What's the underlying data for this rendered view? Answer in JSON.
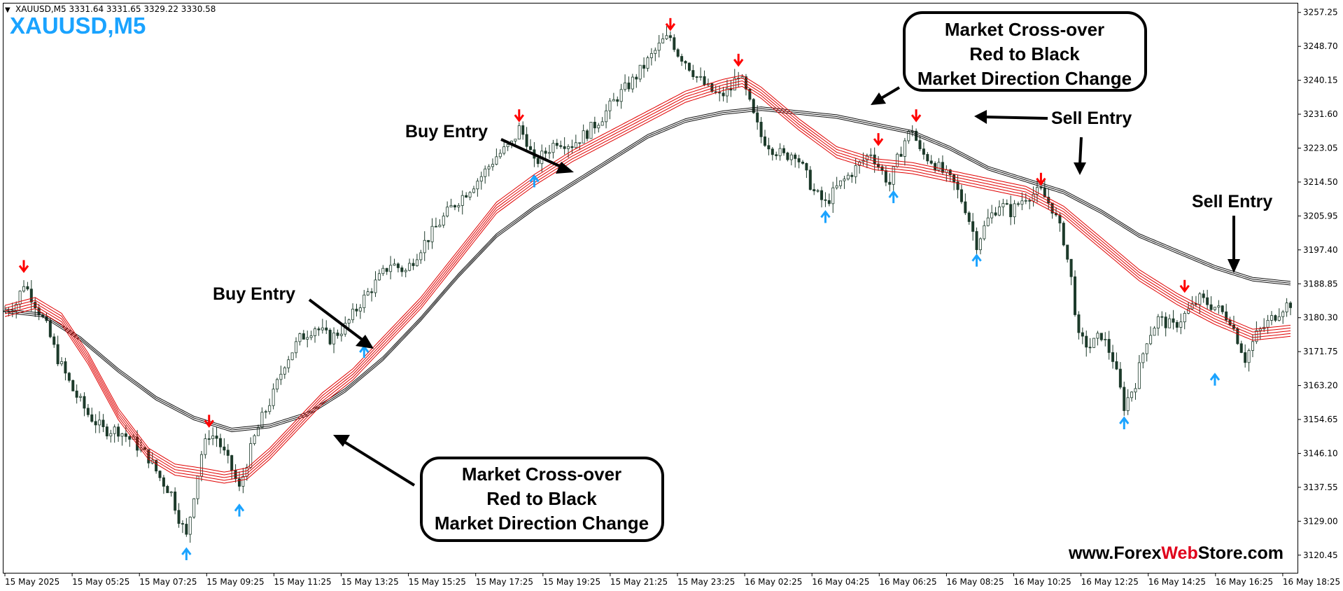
{
  "header": {
    "triangle_glyph": "▼",
    "info_line": "XAUUSD,M5  3331.64 3331.65 3329.22 3330.58",
    "big_title": "XAUUSD,M5"
  },
  "watermark": {
    "prefix": "www.Forex",
    "highlight": "Web",
    "suffix": "Store.com",
    "highlight_color": "#e0001b"
  },
  "colors": {
    "accent_blue": "#1aa3ff",
    "bull_candle": "#1c3a2a",
    "bear_candle": "#1c3a2a",
    "fast_ema": "#e00000",
    "slow_ema": "#111111",
    "sell_arrow": "#ff0000",
    "buy_arrow": "#1aa3ff"
  },
  "annotations": {
    "buy_entry_1": "Buy Entry",
    "buy_entry_2": "Buy Entry",
    "sell_entry_1": "Sell Entry",
    "sell_entry_2": "Sell Entry",
    "crossover_top": [
      "Market Cross-over",
      "Red to Black",
      "Market Direction Change"
    ],
    "crossover_bottom": [
      "Market Cross-over",
      "Red to Black",
      "Market Direction Change"
    ]
  },
  "chart_data": {
    "type": "candlestick",
    "symbol": "XAUUSD",
    "timeframe": "M5",
    "ylim": [
      3116.0,
      3259.5
    ],
    "y_ticks": [
      3257.25,
      3248.7,
      3240.15,
      3231.6,
      3223.05,
      3214.5,
      3205.95,
      3197.4,
      3188.85,
      3180.3,
      3171.75,
      3163.2,
      3154.65,
      3146.1,
      3137.55,
      3129.0,
      3120.45
    ],
    "x_tick_labels": [
      "15 May 2025",
      "15 May 05:25",
      "15 May 07:25",
      "15 May 09:25",
      "15 May 11:25",
      "15 May 13:25",
      "15 May 15:25",
      "15 May 17:25",
      "15 May 19:25",
      "15 May 21:25",
      "15 May 23:25",
      "16 May 02:25",
      "16 May 04:25",
      "16 May 06:25",
      "16 May 08:25",
      "16 May 10:25",
      "16 May 12:25",
      "16 May 14:25",
      "16 May 16:25",
      "16 May 18:25"
    ],
    "price_path_anchors": [
      [
        0,
        3182
      ],
      [
        3,
        3184
      ],
      [
        5,
        3189
      ],
      [
        8,
        3184
      ],
      [
        11,
        3178
      ],
      [
        14,
        3170
      ],
      [
        18,
        3162
      ],
      [
        22,
        3156
      ],
      [
        26,
        3152
      ],
      [
        30,
        3152
      ],
      [
        34,
        3149
      ],
      [
        38,
        3145
      ],
      [
        41,
        3140
      ],
      [
        44,
        3136
      ],
      [
        46,
        3130
      ],
      [
        48,
        3125
      ],
      [
        50,
        3136
      ],
      [
        52,
        3146
      ],
      [
        54,
        3151
      ],
      [
        56,
        3150
      ],
      [
        58,
        3146
      ],
      [
        60,
        3142
      ],
      [
        62,
        3137
      ],
      [
        64,
        3144
      ],
      [
        66,
        3150
      ],
      [
        68,
        3155
      ],
      [
        71,
        3161
      ],
      [
        74,
        3169
      ],
      [
        78,
        3175
      ],
      [
        82,
        3178
      ],
      [
        86,
        3175
      ],
      [
        90,
        3178
      ],
      [
        94,
        3184
      ],
      [
        98,
        3189
      ],
      [
        102,
        3194
      ],
      [
        106,
        3192
      ],
      [
        110,
        3198
      ],
      [
        114,
        3203
      ],
      [
        118,
        3208
      ],
      [
        122,
        3212
      ],
      [
        126,
        3216
      ],
      [
        130,
        3221
      ],
      [
        134,
        3224
      ],
      [
        136,
        3228
      ],
      [
        138,
        3225
      ],
      [
        140,
        3219
      ],
      [
        143,
        3222
      ],
      [
        146,
        3225
      ],
      [
        150,
        3224
      ],
      [
        154,
        3227
      ],
      [
        158,
        3231
      ],
      [
        162,
        3236
      ],
      [
        166,
        3240
      ],
      [
        170,
        3245
      ],
      [
        174,
        3250
      ],
      [
        176,
        3251
      ],
      [
        178,
        3247
      ],
      [
        180,
        3245
      ],
      [
        183,
        3241
      ],
      [
        186,
        3238
      ],
      [
        189,
        3236
      ],
      [
        192,
        3238
      ],
      [
        194,
        3242
      ],
      [
        196,
        3237
      ],
      [
        198,
        3231
      ],
      [
        200,
        3226
      ],
      [
        203,
        3223
      ],
      [
        206,
        3221
      ],
      [
        209,
        3222
      ],
      [
        212,
        3216
      ],
      [
        214,
        3212
      ],
      [
        217,
        3209
      ],
      [
        220,
        3213
      ],
      [
        223,
        3216
      ],
      [
        226,
        3219
      ],
      [
        229,
        3222
      ],
      [
        232,
        3217
      ],
      [
        234,
        3214
      ],
      [
        236,
        3220
      ],
      [
        238,
        3225
      ],
      [
        240,
        3228
      ],
      [
        242,
        3222
      ],
      [
        245,
        3220
      ],
      [
        248,
        3217
      ],
      [
        251,
        3214
      ],
      [
        254,
        3208
      ],
      [
        257,
        3199
      ],
      [
        260,
        3205
      ],
      [
        263,
        3209
      ],
      [
        266,
        3207
      ],
      [
        270,
        3211
      ],
      [
        274,
        3212
      ],
      [
        277,
        3208
      ],
      [
        280,
        3200
      ],
      [
        282,
        3190
      ],
      [
        284,
        3175
      ],
      [
        287,
        3173
      ],
      [
        290,
        3176
      ],
      [
        293,
        3170
      ],
      [
        296,
        3158
      ],
      [
        299,
        3164
      ],
      [
        302,
        3175
      ],
      [
        305,
        3180
      ],
      [
        309,
        3178
      ],
      [
        313,
        3182
      ],
      [
        316,
        3185
      ],
      [
        320,
        3183
      ],
      [
        324,
        3180
      ],
      [
        328,
        3170
      ],
      [
        331,
        3176
      ],
      [
        335,
        3180
      ],
      [
        338,
        3183
      ],
      [
        340,
        3184
      ]
    ],
    "fast_ema_anchors": [
      [
        0,
        3182
      ],
      [
        8,
        3184
      ],
      [
        15,
        3180
      ],
      [
        22,
        3170
      ],
      [
        30,
        3156
      ],
      [
        38,
        3146
      ],
      [
        45,
        3142
      ],
      [
        52,
        3141
      ],
      [
        58,
        3140
      ],
      [
        64,
        3141
      ],
      [
        70,
        3146
      ],
      [
        76,
        3152
      ],
      [
        84,
        3160
      ],
      [
        92,
        3166
      ],
      [
        100,
        3174
      ],
      [
        110,
        3184
      ],
      [
        120,
        3196
      ],
      [
        130,
        3208
      ],
      [
        140,
        3215
      ],
      [
        150,
        3221
      ],
      [
        160,
        3226
      ],
      [
        170,
        3231
      ],
      [
        180,
        3236
      ],
      [
        190,
        3239
      ],
      [
        195,
        3240
      ],
      [
        200,
        3237
      ],
      [
        210,
        3229
      ],
      [
        220,
        3222
      ],
      [
        230,
        3219
      ],
      [
        240,
        3218
      ],
      [
        250,
        3216
      ],
      [
        260,
        3214
      ],
      [
        270,
        3212
      ],
      [
        280,
        3207
      ],
      [
        290,
        3199
      ],
      [
        300,
        3191
      ],
      [
        310,
        3185
      ],
      [
        320,
        3180
      ],
      [
        330,
        3176
      ],
      [
        340,
        3177
      ]
    ],
    "slow_ema_anchors": [
      [
        0,
        3182
      ],
      [
        10,
        3181
      ],
      [
        20,
        3175
      ],
      [
        30,
        3167
      ],
      [
        40,
        3160
      ],
      [
        50,
        3155
      ],
      [
        60,
        3152
      ],
      [
        70,
        3153
      ],
      [
        80,
        3156
      ],
      [
        90,
        3162
      ],
      [
        100,
        3170
      ],
      [
        110,
        3180
      ],
      [
        120,
        3191
      ],
      [
        130,
        3201
      ],
      [
        140,
        3208
      ],
      [
        150,
        3214
      ],
      [
        160,
        3220
      ],
      [
        170,
        3226
      ],
      [
        180,
        3230
      ],
      [
        190,
        3232
      ],
      [
        200,
        3233
      ],
      [
        210,
        3232
      ],
      [
        220,
        3231
      ],
      [
        230,
        3229
      ],
      [
        240,
        3227
      ],
      [
        250,
        3223
      ],
      [
        260,
        3218
      ],
      [
        270,
        3215
      ],
      [
        280,
        3212
      ],
      [
        290,
        3207
      ],
      [
        300,
        3201
      ],
      [
        310,
        3197
      ],
      [
        320,
        3193
      ],
      [
        330,
        3190
      ],
      [
        340,
        3189
      ]
    ],
    "sell_signals": [
      {
        "index": 5,
        "price": 3192
      },
      {
        "index": 54,
        "price": 3153
      },
      {
        "index": 136,
        "price": 3230
      },
      {
        "index": 176,
        "price": 3253
      },
      {
        "index": 194,
        "price": 3244
      },
      {
        "index": 231,
        "price": 3224
      },
      {
        "index": 241,
        "price": 3230
      },
      {
        "index": 274,
        "price": 3214
      },
      {
        "index": 312,
        "price": 3187
      }
    ],
    "buy_signals": [
      {
        "index": 48,
        "price": 3122
      },
      {
        "index": 62,
        "price": 3133
      },
      {
        "index": 95,
        "price": 3173
      },
      {
        "index": 140,
        "price": 3216
      },
      {
        "index": 217,
        "price": 3207
      },
      {
        "index": 235,
        "price": 3212
      },
      {
        "index": 257,
        "price": 3196
      },
      {
        "index": 296,
        "price": 3155
      },
      {
        "index": 320,
        "price": 3166
      }
    ]
  }
}
